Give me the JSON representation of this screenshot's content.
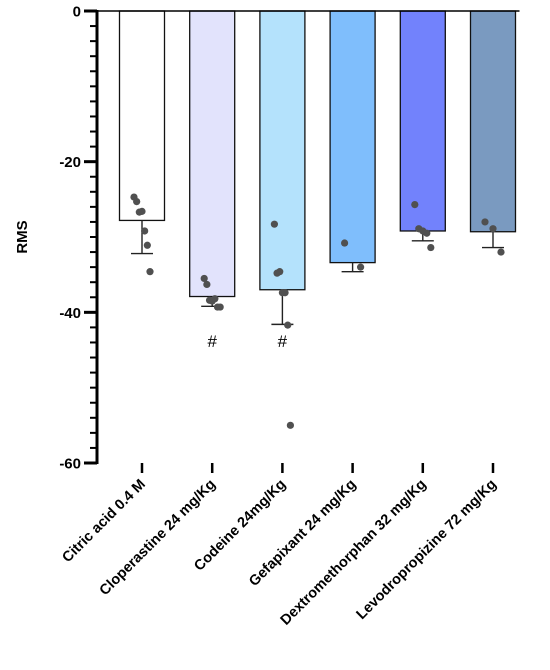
{
  "chart_data": {
    "type": "bar",
    "ylabel": "RMS",
    "ylim": [
      -60,
      0
    ],
    "yticks": [
      0,
      -20,
      -40,
      -60
    ],
    "minor_tick_step": 2,
    "grid": false,
    "categories": [
      "Citric acid 0.4 M",
      "Cloperastine 24 mg/Kg",
      "Codeine  24mg/Kg",
      "Gefapixant  24 mg/Kg",
      "Dextromethorphan 32 mg/Kg",
      "Levodropropizine 72 mg/Kg"
    ],
    "values": [
      -27.8,
      -37.9,
      -37.0,
      -33.4,
      -29.2,
      -29.3
    ],
    "error_low": [
      -32.2,
      -39.2,
      -41.6,
      -34.6,
      -30.5,
      -31.4
    ],
    "error_high": [
      -27.8,
      -37.9,
      -37.0,
      -33.4,
      -29.2,
      -29.3
    ],
    "colors": [
      "#ffffff",
      "#e2e3fc",
      "#b4e2fc",
      "#7fbefc",
      "#7282fc",
      "#7a9ac0"
    ],
    "points": [
      [
        -24.7,
        -25.3,
        -26.7,
        -26.6,
        -29.2,
        -31.1,
        -34.6
      ],
      [
        -35.5,
        -36.3,
        -38.4,
        -38.5,
        -38.2,
        -39.3,
        -39.3
      ],
      [
        -28.3,
        -34.8,
        -34.6,
        -37.4,
        -37.4,
        -41.7,
        -55.0
      ],
      [
        -30.8,
        -34.0
      ],
      [
        -25.7,
        -28.9,
        -29.2,
        -29.5,
        -31.4
      ],
      [
        -28.0,
        -28.9,
        -32.0
      ]
    ],
    "annotations": [
      "",
      "#",
      "#",
      "",
      "",
      ""
    ]
  }
}
